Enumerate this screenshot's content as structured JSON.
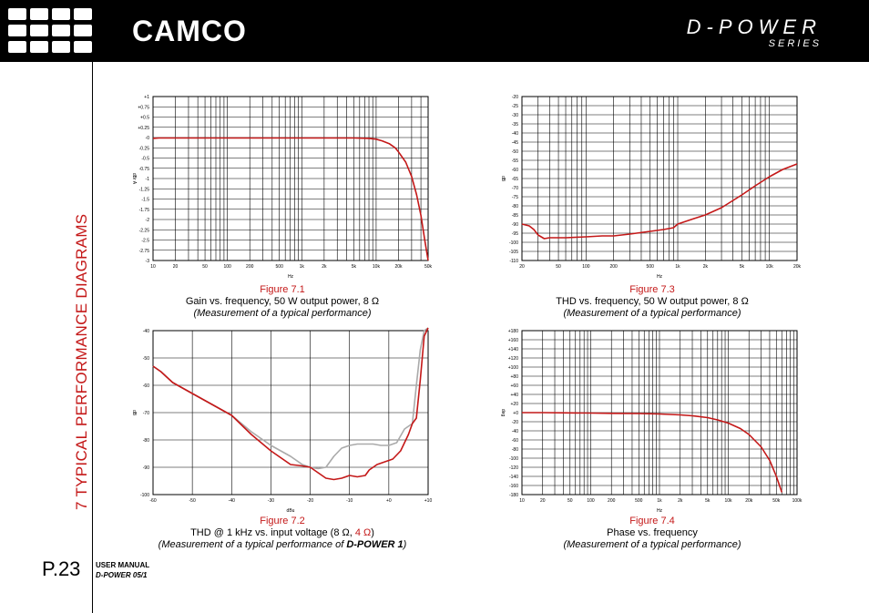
{
  "header": {
    "brand": "CAMCO",
    "series_title": "D-POWER",
    "series_sub": "SERIES",
    "background": "#000000"
  },
  "section_title": "7 TYPICAL PERFORMANCE DIAGRAMS",
  "footer": {
    "page": "P.23",
    "manual_line1": "USER MANUAL",
    "manual_line2": "D-POWER 05/1"
  },
  "figures": {
    "fig1": {
      "label": "Figure 7.1",
      "line1": "Gain vs. frequency, 50 W output power, 8 Ω",
      "line2": "(Measurement of a typical performance)"
    },
    "fig2": {
      "label": "Figure 7.2",
      "line1_a": "THD @ 1 kHz vs. input voltage (8 Ω, ",
      "line1_b": "4 Ω",
      "line1_c": ")",
      "line2_a": "(Measurement of a typical performance of ",
      "line2_b": "D-POWER 1",
      "line2_c": ")"
    },
    "fig3": {
      "label": "Figure 7.3",
      "line1": "THD vs. frequency, 50 W output power, 8 Ω",
      "line2": "(Measurement of a typical performance)"
    },
    "fig4": {
      "label": "Figure 7.4",
      "line1": "Phase vs. frequency",
      "line2": "(Measurement of a typical performance)"
    }
  },
  "chart_data": [
    {
      "id": "fig1",
      "type": "line",
      "title": "Figure 7.1",
      "xscale": "log",
      "xlim": [
        10,
        50000
      ],
      "ylim": [
        -3,
        1
      ],
      "xlabel": "Hz",
      "ylabel": "dBr A",
      "xticks": [
        10,
        20,
        50,
        100,
        200,
        500,
        1000,
        2000,
        5000,
        10000,
        20000,
        50000
      ],
      "xtick_labels": [
        "10",
        "20",
        "50",
        "100",
        "200",
        "500",
        "1k",
        "2k",
        "5k",
        "10k",
        "20k",
        "50k"
      ],
      "yticks": [
        1,
        0.75,
        0.5,
        0.25,
        0,
        -0.25,
        -0.5,
        -0.75,
        -1,
        -1.25,
        -1.5,
        -1.75,
        -2,
        -2.25,
        -2.5,
        -2.75,
        -3
      ],
      "ytick_labels": [
        "+1",
        "+0.75",
        "+0.5",
        "+0.25",
        "-0",
        "-0.25",
        "-0.5",
        "-0.75",
        "-1",
        "-1.25",
        "-1.5",
        "-1.75",
        "-2",
        "-2.25",
        "-2.5",
        "-2.75",
        "-3"
      ],
      "series": [
        {
          "name": "gain",
          "color": "#c41818",
          "x": [
            10,
            12,
            20,
            100,
            1000,
            5000,
            8000,
            10000,
            12000,
            15000,
            18000,
            20000,
            25000,
            30000,
            35000,
            40000,
            45000,
            50000
          ],
          "y": [
            -0.02,
            -0.01,
            -0.01,
            -0.01,
            -0.01,
            -0.01,
            -0.02,
            -0.04,
            -0.08,
            -0.15,
            -0.25,
            -0.35,
            -0.6,
            -0.95,
            -1.4,
            -1.9,
            -2.5,
            -3.0
          ]
        }
      ]
    },
    {
      "id": "fig2",
      "type": "line",
      "title": "Figure 7.2",
      "xscale": "linear",
      "xlim": [
        -60,
        10
      ],
      "ylim": [
        -100,
        -40
      ],
      "xlabel": "dBu",
      "ylabel": "dB",
      "xticks": [
        -60,
        -50,
        -40,
        -30,
        -20,
        -10,
        0,
        10
      ],
      "xtick_labels": [
        "-60",
        "-50",
        "-40",
        "-30",
        "-20",
        "-10",
        "+0",
        "+10"
      ],
      "yticks": [
        -40,
        -50,
        -60,
        -70,
        -80,
        -90,
        -100
      ],
      "ytick_labels": [
        "-40",
        "-50",
        "-60",
        "-70",
        "-80",
        "-90",
        "-100"
      ],
      "series": [
        {
          "name": "8 Ω",
          "color": "#aaaaaa",
          "x": [
            -60,
            -58,
            -55,
            -50,
            -45,
            -40,
            -35,
            -30,
            -25,
            -22,
            -20,
            -18,
            -16,
            -14,
            -12,
            -10,
            -8,
            -6,
            -4,
            -2,
            0,
            2,
            4,
            6,
            7,
            8,
            9,
            10
          ],
          "y": [
            -53,
            -55,
            -59,
            -63,
            -67,
            -71,
            -77,
            -82,
            -86,
            -89,
            -90,
            -90.5,
            -90,
            -86,
            -83,
            -82,
            -81.5,
            -81.5,
            -81.5,
            -82,
            -82,
            -81,
            -76,
            -74,
            -60,
            -47,
            -40,
            -39
          ]
        },
        {
          "name": "4 Ω",
          "color": "#c41818",
          "x": [
            -60,
            -58,
            -55,
            -50,
            -45,
            -40,
            -35,
            -30,
            -25,
            -22,
            -20,
            -18,
            -16,
            -14,
            -12,
            -10,
            -8,
            -6,
            -5,
            -3,
            -1,
            1,
            3,
            5,
            6,
            7,
            8,
            9,
            10
          ],
          "y": [
            -53,
            -55,
            -59,
            -63,
            -67,
            -71,
            -78,
            -84,
            -89,
            -89.5,
            -90,
            -92,
            -94,
            -94.5,
            -94,
            -93,
            -93.5,
            -93,
            -91,
            -89,
            -88,
            -87,
            -84,
            -78,
            -74,
            -72,
            -58,
            -42,
            -39
          ]
        }
      ]
    },
    {
      "id": "fig3",
      "type": "line",
      "title": "Figure 7.3",
      "xscale": "log",
      "xlim": [
        20,
        20000
      ],
      "ylim": [
        -110,
        -20
      ],
      "xlabel": "Hz",
      "ylabel": "dB",
      "xticks": [
        20,
        50,
        100,
        200,
        500,
        1000,
        2000,
        5000,
        10000,
        20000
      ],
      "xtick_labels": [
        "20",
        "50",
        "100",
        "200",
        "500",
        "1k",
        "2k",
        "5k",
        "10k",
        "20k"
      ],
      "yticks": [
        -20,
        -25,
        -30,
        -35,
        -40,
        -45,
        -50,
        -55,
        -60,
        -65,
        -70,
        -75,
        -80,
        -85,
        -90,
        -95,
        -100,
        -105,
        -110
      ],
      "ytick_labels": [
        "-20",
        "-25",
        "-30",
        "-35",
        "-40",
        "-45",
        "-50",
        "-55",
        "-60",
        "-65",
        "-70",
        "-75",
        "-80",
        "-85",
        "-90",
        "-95",
        "-100",
        "-105",
        "-110"
      ],
      "series": [
        {
          "name": "thd",
          "color": "#c41818",
          "x": [
            20,
            24,
            27,
            30,
            35,
            40,
            60,
            100,
            150,
            200,
            300,
            500,
            700,
            900,
            1000,
            1500,
            2000,
            3000,
            5000,
            7000,
            10000,
            14000,
            20000
          ],
          "y": [
            -90,
            -91,
            -93,
            -96,
            -98,
            -97.5,
            -97.5,
            -97,
            -96.5,
            -96.5,
            -95.5,
            -94,
            -93,
            -92,
            -90,
            -87,
            -85,
            -81,
            -74,
            -69,
            -64,
            -60,
            -57
          ]
        }
      ]
    },
    {
      "id": "fig4",
      "type": "line",
      "title": "Figure 7.4",
      "xscale": "log",
      "xlim": [
        10,
        100000
      ],
      "ylim": [
        -180,
        180
      ],
      "xlabel": "Hz",
      "ylabel": "deg",
      "xticks": [
        10,
        20,
        50,
        100,
        200,
        500,
        1000,
        2000,
        5000,
        10000,
        20000,
        50000,
        100000
      ],
      "xtick_labels": [
        "10",
        "20",
        "50",
        "100",
        "200",
        "500",
        "1k",
        "2k",
        "5k",
        "10k",
        "20k",
        "50k",
        "100k"
      ],
      "yticks": [
        180,
        160,
        140,
        120,
        100,
        80,
        60,
        40,
        20,
        0,
        -20,
        -40,
        -60,
        -80,
        -100,
        -120,
        -140,
        -160,
        -180
      ],
      "ytick_labels": [
        "+180",
        "+160",
        "+140",
        "+120",
        "+100",
        "+80",
        "+60",
        "+40",
        "+20",
        "+0",
        "-20",
        "-40",
        "-60",
        "-80",
        "-100",
        "-120",
        "-140",
        "-160",
        "-180"
      ],
      "series": [
        {
          "name": "phase",
          "color": "#c41818",
          "x": [
            10,
            20,
            50,
            100,
            200,
            500,
            1000,
            2000,
            3000,
            5000,
            7000,
            10000,
            15000,
            20000,
            30000,
            40000,
            50000,
            60000
          ],
          "y": [
            0,
            0,
            -0.5,
            -1,
            -1.5,
            -2,
            -3,
            -5,
            -7,
            -11,
            -16,
            -23,
            -35,
            -48,
            -75,
            -105,
            -140,
            -175
          ]
        }
      ]
    }
  ]
}
